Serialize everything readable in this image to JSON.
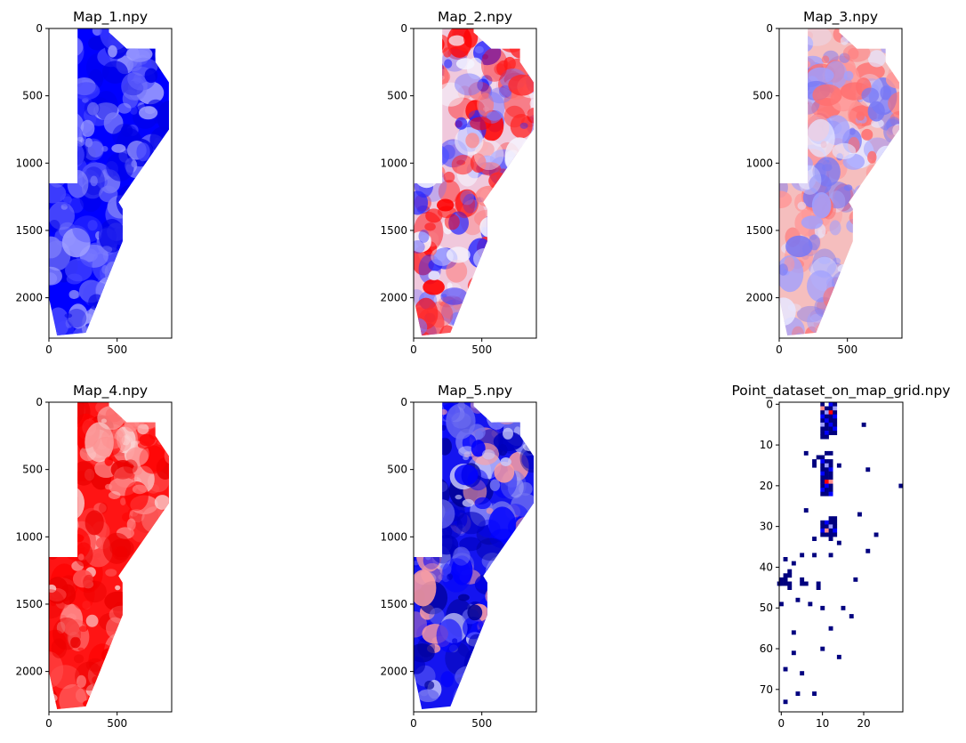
{
  "figure": {
    "colors": {
      "low": "#0000ff",
      "mid": "#ffffff",
      "high": "#ff0000",
      "dark": "#00007f",
      "axis": "#000000"
    }
  },
  "chart_data": [
    {
      "type": "heatmap",
      "title": "Map_1.npy",
      "colormap": "bwr",
      "xlabel": "",
      "ylabel": "",
      "xlim": [
        0,
        900
      ],
      "ylim": [
        2300,
        0
      ],
      "xticks": [
        "0",
        "500"
      ],
      "yticks": [
        "0",
        "500",
        "1000",
        "1500",
        "2000"
      ],
      "dominant_tone": "blue (low values)",
      "grid": false
    },
    {
      "type": "heatmap",
      "title": "Map_2.npy",
      "colormap": "bwr",
      "xlabel": "",
      "ylabel": "",
      "xlim": [
        0,
        900
      ],
      "ylim": [
        2300,
        0
      ],
      "xticks": [
        "0",
        "500"
      ],
      "yticks": [
        "0",
        "500",
        "1000",
        "1500",
        "2000"
      ],
      "dominant_tone": "mixed red / blue",
      "grid": false
    },
    {
      "type": "heatmap",
      "title": "Map_3.npy",
      "colormap": "bwr",
      "xlabel": "",
      "ylabel": "",
      "xlim": [
        0,
        900
      ],
      "ylim": [
        2300,
        0
      ],
      "xticks": [
        "0",
        "500"
      ],
      "yticks": [
        "0",
        "500",
        "1000",
        "1500",
        "2000"
      ],
      "dominant_tone": "light red (north) / light blue (south)",
      "grid": false
    },
    {
      "type": "heatmap",
      "title": "Map_4.npy",
      "colormap": "bwr",
      "xlabel": "",
      "ylabel": "",
      "xlim": [
        0,
        900
      ],
      "ylim": [
        2300,
        0
      ],
      "xticks": [
        "0",
        "500"
      ],
      "yticks": [
        "0",
        "500",
        "1000",
        "1500",
        "2000"
      ],
      "dominant_tone": "red (high values)",
      "grid": false
    },
    {
      "type": "heatmap",
      "title": "Map_5.npy",
      "colormap": "bwr",
      "xlabel": "",
      "ylabel": "",
      "xlim": [
        0,
        900
      ],
      "ylim": [
        2300,
        0
      ],
      "xticks": [
        "0",
        "500"
      ],
      "yticks": [
        "0",
        "500",
        "1000",
        "1500",
        "2000"
      ],
      "dominant_tone": "blue (low values)",
      "grid": false
    },
    {
      "type": "heatmap",
      "title": "Point_dataset_on_map_grid.npy",
      "colormap": "seismic",
      "xlabel": "",
      "ylabel": "",
      "xlim": [
        -0.5,
        29.5
      ],
      "ylim": [
        75.5,
        -0.5
      ],
      "xticks": [
        "0",
        "10",
        "20"
      ],
      "yticks": [
        "0",
        "10",
        "20",
        "30",
        "40",
        "50",
        "60",
        "70"
      ],
      "grid": false,
      "cells": [
        {
          "x": 10,
          "y": 0,
          "c": "dark"
        },
        {
          "x": 11,
          "y": 0,
          "c": "mid"
        },
        {
          "x": 12,
          "y": 0,
          "c": "blue"
        },
        {
          "x": 13,
          "y": 0,
          "c": "dark"
        },
        {
          "x": 10,
          "y": 1,
          "c": "pink"
        },
        {
          "x": 11,
          "y": 1,
          "c": "dark"
        },
        {
          "x": 12,
          "y": 1,
          "c": "dark"
        },
        {
          "x": 13,
          "y": 1,
          "c": "light"
        },
        {
          "x": 10,
          "y": 2,
          "c": "dark"
        },
        {
          "x": 11,
          "y": 2,
          "c": "light"
        },
        {
          "x": 12,
          "y": 2,
          "c": "red"
        },
        {
          "x": 13,
          "y": 2,
          "c": "dark"
        },
        {
          "x": 10,
          "y": 3,
          "c": "blue"
        },
        {
          "x": 11,
          "y": 3,
          "c": "dark"
        },
        {
          "x": 12,
          "y": 3,
          "c": "dark"
        },
        {
          "x": 13,
          "y": 3,
          "c": "blue"
        },
        {
          "x": 10,
          "y": 4,
          "c": "dark"
        },
        {
          "x": 11,
          "y": 4,
          "c": "blue"
        },
        {
          "x": 12,
          "y": 4,
          "c": "dark"
        },
        {
          "x": 13,
          "y": 4,
          "c": "dark"
        },
        {
          "x": 10,
          "y": 5,
          "c": "light"
        },
        {
          "x": 11,
          "y": 5,
          "c": "dark"
        },
        {
          "x": 12,
          "y": 5,
          "c": "blue"
        },
        {
          "x": 13,
          "y": 5,
          "c": "dark"
        },
        {
          "x": 10,
          "y": 6,
          "c": "dark"
        },
        {
          "x": 11,
          "y": 6,
          "c": "dark"
        },
        {
          "x": 12,
          "y": 6,
          "c": "dark"
        },
        {
          "x": 13,
          "y": 6,
          "c": "blue"
        },
        {
          "x": 10,
          "y": 7,
          "c": "dark"
        },
        {
          "x": 11,
          "y": 7,
          "c": "blue"
        },
        {
          "x": 12,
          "y": 7,
          "c": "dark"
        },
        {
          "x": 13,
          "y": 7,
          "c": "dark"
        },
        {
          "x": 10,
          "y": 8,
          "c": "dark"
        },
        {
          "x": 11,
          "y": 8,
          "c": "dark"
        },
        {
          "x": 20,
          "y": 5,
          "c": "dark"
        },
        {
          "x": 6,
          "y": 12,
          "c": "dark"
        },
        {
          "x": 9,
          "y": 13,
          "c": "dark"
        },
        {
          "x": 8,
          "y": 14,
          "c": "dark"
        },
        {
          "x": 8,
          "y": 15,
          "c": "dark"
        },
        {
          "x": 10,
          "y": 13,
          "c": "dark"
        },
        {
          "x": 11,
          "y": 12,
          "c": "dark"
        },
        {
          "x": 12,
          "y": 12,
          "c": "dark"
        },
        {
          "x": 10,
          "y": 14,
          "c": "blue"
        },
        {
          "x": 11,
          "y": 14,
          "c": "dark"
        },
        {
          "x": 12,
          "y": 14,
          "c": "dark"
        },
        {
          "x": 10,
          "y": 15,
          "c": "dark"
        },
        {
          "x": 11,
          "y": 15,
          "c": "light"
        },
        {
          "x": 12,
          "y": 15,
          "c": "dark"
        },
        {
          "x": 10,
          "y": 16,
          "c": "dark"
        },
        {
          "x": 11,
          "y": 16,
          "c": "dark"
        },
        {
          "x": 12,
          "y": 16,
          "c": "blue"
        },
        {
          "x": 10,
          "y": 17,
          "c": "blue"
        },
        {
          "x": 11,
          "y": 17,
          "c": "dark"
        },
        {
          "x": 12,
          "y": 17,
          "c": "dark"
        },
        {
          "x": 10,
          "y": 18,
          "c": "dark"
        },
        {
          "x": 11,
          "y": 18,
          "c": "dark"
        },
        {
          "x": 12,
          "y": 18,
          "c": "dark"
        },
        {
          "x": 10,
          "y": 19,
          "c": "dark"
        },
        {
          "x": 11,
          "y": 19,
          "c": "red"
        },
        {
          "x": 12,
          "y": 19,
          "c": "pink"
        },
        {
          "x": 10,
          "y": 20,
          "c": "dark"
        },
        {
          "x": 11,
          "y": 20,
          "c": "blue"
        },
        {
          "x": 12,
          "y": 20,
          "c": "dark"
        },
        {
          "x": 10,
          "y": 21,
          "c": "blue"
        },
        {
          "x": 11,
          "y": 21,
          "c": "dark"
        },
        {
          "x": 12,
          "y": 21,
          "c": "dark"
        },
        {
          "x": 10,
          "y": 22,
          "c": "dark"
        },
        {
          "x": 11,
          "y": 22,
          "c": "dark"
        },
        {
          "x": 12,
          "y": 22,
          "c": "blue"
        },
        {
          "x": 14,
          "y": 15,
          "c": "dark"
        },
        {
          "x": 21,
          "y": 16,
          "c": "dark"
        },
        {
          "x": 29,
          "y": 20,
          "c": "dark"
        },
        {
          "x": 6,
          "y": 26,
          "c": "dark"
        },
        {
          "x": 19,
          "y": 27,
          "c": "dark"
        },
        {
          "x": 12,
          "y": 28,
          "c": "dark"
        },
        {
          "x": 13,
          "y": 28,
          "c": "dark"
        },
        {
          "x": 10,
          "y": 29,
          "c": "dark"
        },
        {
          "x": 11,
          "y": 29,
          "c": "blue"
        },
        {
          "x": 12,
          "y": 29,
          "c": "dark"
        },
        {
          "x": 13,
          "y": 29,
          "c": "dark"
        },
        {
          "x": 10,
          "y": 30,
          "c": "dark"
        },
        {
          "x": 11,
          "y": 30,
          "c": "dark"
        },
        {
          "x": 12,
          "y": 30,
          "c": "light"
        },
        {
          "x": 13,
          "y": 30,
          "c": "dark"
        },
        {
          "x": 10,
          "y": 31,
          "c": "blue"
        },
        {
          "x": 11,
          "y": 31,
          "c": "pink"
        },
        {
          "x": 12,
          "y": 31,
          "c": "dark"
        },
        {
          "x": 13,
          "y": 31,
          "c": "blue"
        },
        {
          "x": 10,
          "y": 32,
          "c": "dark"
        },
        {
          "x": 11,
          "y": 32,
          "c": "dark"
        },
        {
          "x": 12,
          "y": 32,
          "c": "dark"
        },
        {
          "x": 13,
          "y": 32,
          "c": "dark"
        },
        {
          "x": 8,
          "y": 33,
          "c": "dark"
        },
        {
          "x": 12,
          "y": 33,
          "c": "dark"
        },
        {
          "x": 14,
          "y": 34,
          "c": "dark"
        },
        {
          "x": 23,
          "y": 32,
          "c": "dark"
        },
        {
          "x": 21,
          "y": 36,
          "c": "dark"
        },
        {
          "x": 5,
          "y": 37,
          "c": "dark"
        },
        {
          "x": 8,
          "y": 37,
          "c": "dark"
        },
        {
          "x": 12,
          "y": 37,
          "c": "dark"
        },
        {
          "x": 1,
          "y": 38,
          "c": "dark"
        },
        {
          "x": 3,
          "y": 39,
          "c": "dark"
        },
        {
          "x": 2,
          "y": 41,
          "c": "dark"
        },
        {
          "x": 1,
          "y": 42,
          "c": "dark"
        },
        {
          "x": 2,
          "y": 42,
          "c": "dark"
        },
        {
          "x": 18,
          "y": 43,
          "c": "dark"
        },
        {
          "x": 0,
          "y": 43,
          "c": "dark"
        },
        {
          "x": 1,
          "y": 43,
          "c": "dark"
        },
        {
          "x": 5,
          "y": 43,
          "c": "dark"
        },
        {
          "x": -1,
          "y": 44,
          "c": "dark"
        },
        {
          "x": 0,
          "y": 44,
          "c": "dark"
        },
        {
          "x": 1,
          "y": 44,
          "c": "dark"
        },
        {
          "x": 2,
          "y": 44,
          "c": "dark"
        },
        {
          "x": 5,
          "y": 44,
          "c": "dark"
        },
        {
          "x": 6,
          "y": 44,
          "c": "dark"
        },
        {
          "x": 9,
          "y": 44,
          "c": "dark"
        },
        {
          "x": 2,
          "y": 45,
          "c": "dark"
        },
        {
          "x": 9,
          "y": 45,
          "c": "dark"
        },
        {
          "x": 4,
          "y": 48,
          "c": "dark"
        },
        {
          "x": 7,
          "y": 49,
          "c": "dark"
        },
        {
          "x": 0,
          "y": 49,
          "c": "dark"
        },
        {
          "x": 10,
          "y": 50,
          "c": "dark"
        },
        {
          "x": 15,
          "y": 50,
          "c": "dark"
        },
        {
          "x": 17,
          "y": 52,
          "c": "dark"
        },
        {
          "x": 12,
          "y": 55,
          "c": "dark"
        },
        {
          "x": 3,
          "y": 56,
          "c": "dark"
        },
        {
          "x": 10,
          "y": 60,
          "c": "dark"
        },
        {
          "x": 3,
          "y": 61,
          "c": "dark"
        },
        {
          "x": 14,
          "y": 62,
          "c": "dark"
        },
        {
          "x": 1,
          "y": 65,
          "c": "dark"
        },
        {
          "x": 5,
          "y": 66,
          "c": "dark"
        },
        {
          "x": 4,
          "y": 71,
          "c": "dark"
        },
        {
          "x": 8,
          "y": 71,
          "c": "dark"
        },
        {
          "x": 1,
          "y": 73,
          "c": "dark"
        }
      ]
    }
  ]
}
